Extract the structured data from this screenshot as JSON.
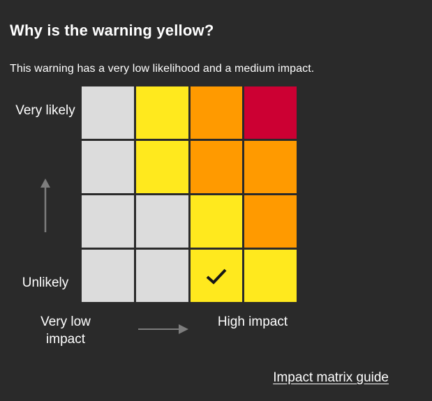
{
  "colors": {
    "background": "#2a2a2a",
    "text": "#ffffff",
    "arrow": "#7d7d7d",
    "checkmark": "#161616",
    "cell_gray": "#dcdcdc",
    "cell_yellow": "#ffe91e",
    "cell_amber": "#ff9a00",
    "cell_red": "#cc0033"
  },
  "header": {
    "title": "Why is the warning yellow?",
    "subtitle": "This warning has a very low likelihood and a medium impact."
  },
  "matrix": {
    "y_axis_top_label": "Very likely",
    "y_axis_bottom_label": "Unlikely",
    "x_axis_left_label": "Very low impact",
    "x_axis_right_label": "High impact",
    "rows": 4,
    "cols": 4,
    "cells": [
      [
        "gray",
        "yellow",
        "amber",
        "red"
      ],
      [
        "gray",
        "yellow",
        "amber",
        "amber"
      ],
      [
        "gray",
        "gray",
        "yellow",
        "amber"
      ],
      [
        "gray",
        "gray",
        "yellow",
        "yellow"
      ]
    ],
    "selected_cell": {
      "row_index": 3,
      "col_index": 2
    }
  },
  "footer": {
    "link_label": "Impact matrix guide"
  }
}
